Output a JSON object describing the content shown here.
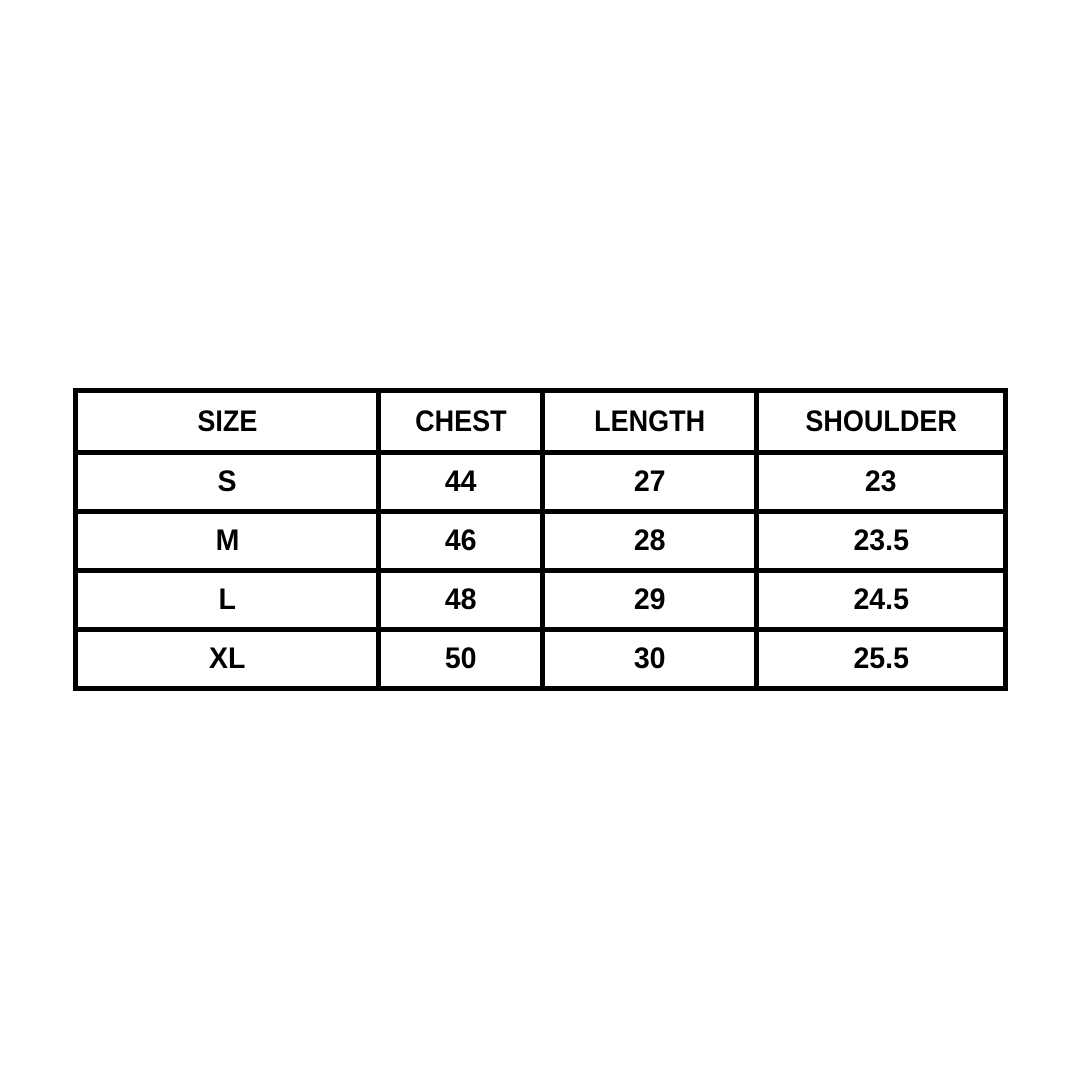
{
  "page": {
    "background_color": "#ffffff"
  },
  "size_chart": {
    "colors": {
      "border": "#000000",
      "text": "#000000",
      "cell_background": "#ffffff"
    },
    "columns": [
      "SIZE",
      "CHEST",
      "LENGTH",
      "SHOULDER"
    ],
    "rows": [
      [
        "S",
        "44",
        "27",
        "23"
      ],
      [
        "M",
        "46",
        "28",
        "23.5"
      ],
      [
        "L",
        "48",
        "29",
        "24.5"
      ],
      [
        "XL",
        "50",
        "30",
        "25.5"
      ]
    ]
  }
}
